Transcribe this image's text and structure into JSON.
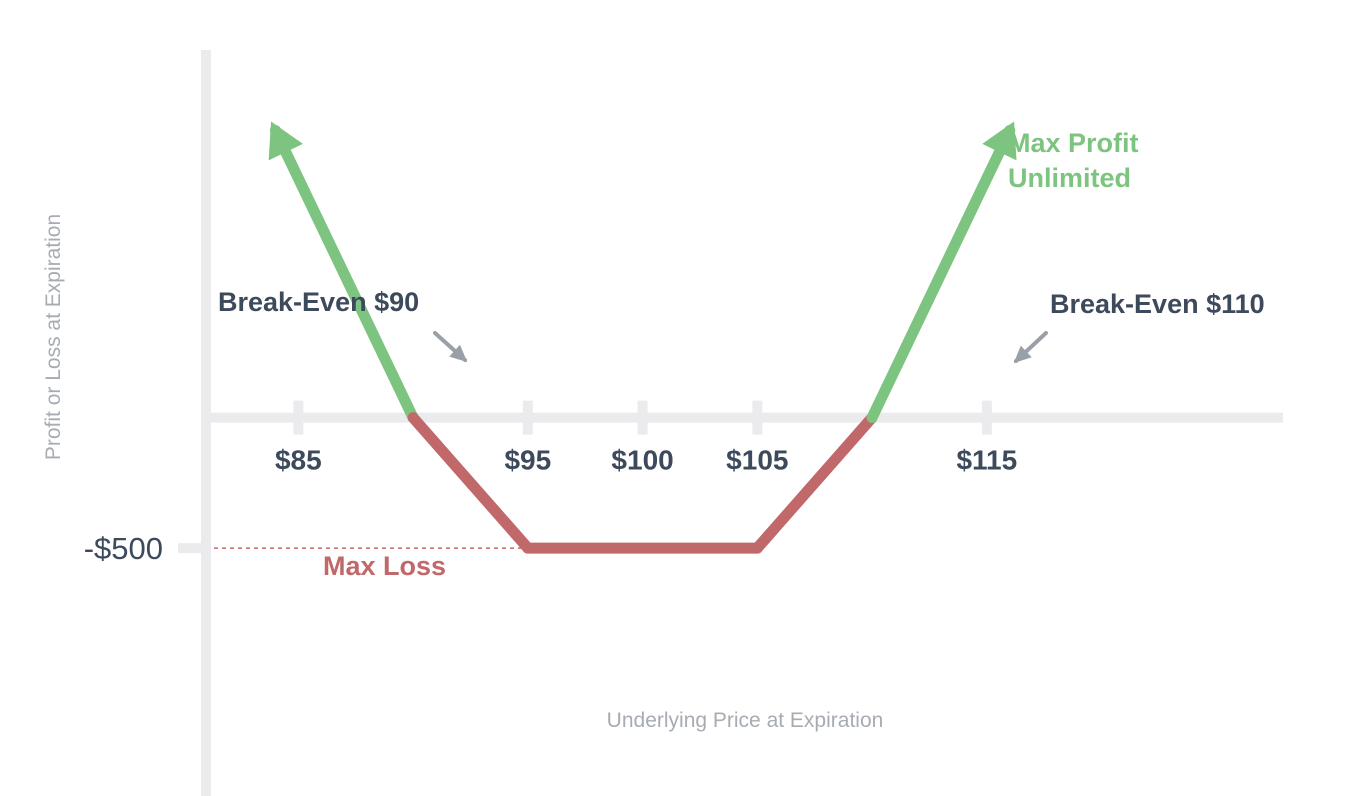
{
  "chart_data": {
    "type": "line",
    "ylabel": "Profit or Loss at Expiration",
    "xlabel": "Underlying Price at Expiration",
    "x_ticks": [
      85,
      95,
      100,
      105,
      115
    ],
    "x_tick_labels": [
      "$85",
      "$95",
      "$100",
      "$105",
      "$115"
    ],
    "y_ticks": [
      -500
    ],
    "y_tick_labels": [
      "-$500"
    ],
    "xlim": [
      72,
      131
    ],
    "ylim": [
      -1450,
      1600
    ],
    "series": [
      {
        "loss_color": "#c0686a",
        "profit_color": "#7cc47f",
        "points": [
          {
            "x": 84,
            "y": 1100
          },
          {
            "x": 90,
            "y": 0
          },
          {
            "x": 95,
            "y": -500
          },
          {
            "x": 105,
            "y": -500
          },
          {
            "x": 110,
            "y": 0
          },
          {
            "x": 116,
            "y": 1100
          }
        ]
      }
    ],
    "annotations": {
      "break_even_low": "Break-Even $90",
      "break_even_high": "Break-Even $110",
      "max_profit_line1": "Max Profit",
      "max_profit_line2": "Unlimited",
      "max_loss": "Max Loss"
    },
    "colors": {
      "axis": "#ebebee",
      "text": "#3d4a5c",
      "muted": "#a7acb3",
      "arrow": "#9aa0a8"
    }
  }
}
